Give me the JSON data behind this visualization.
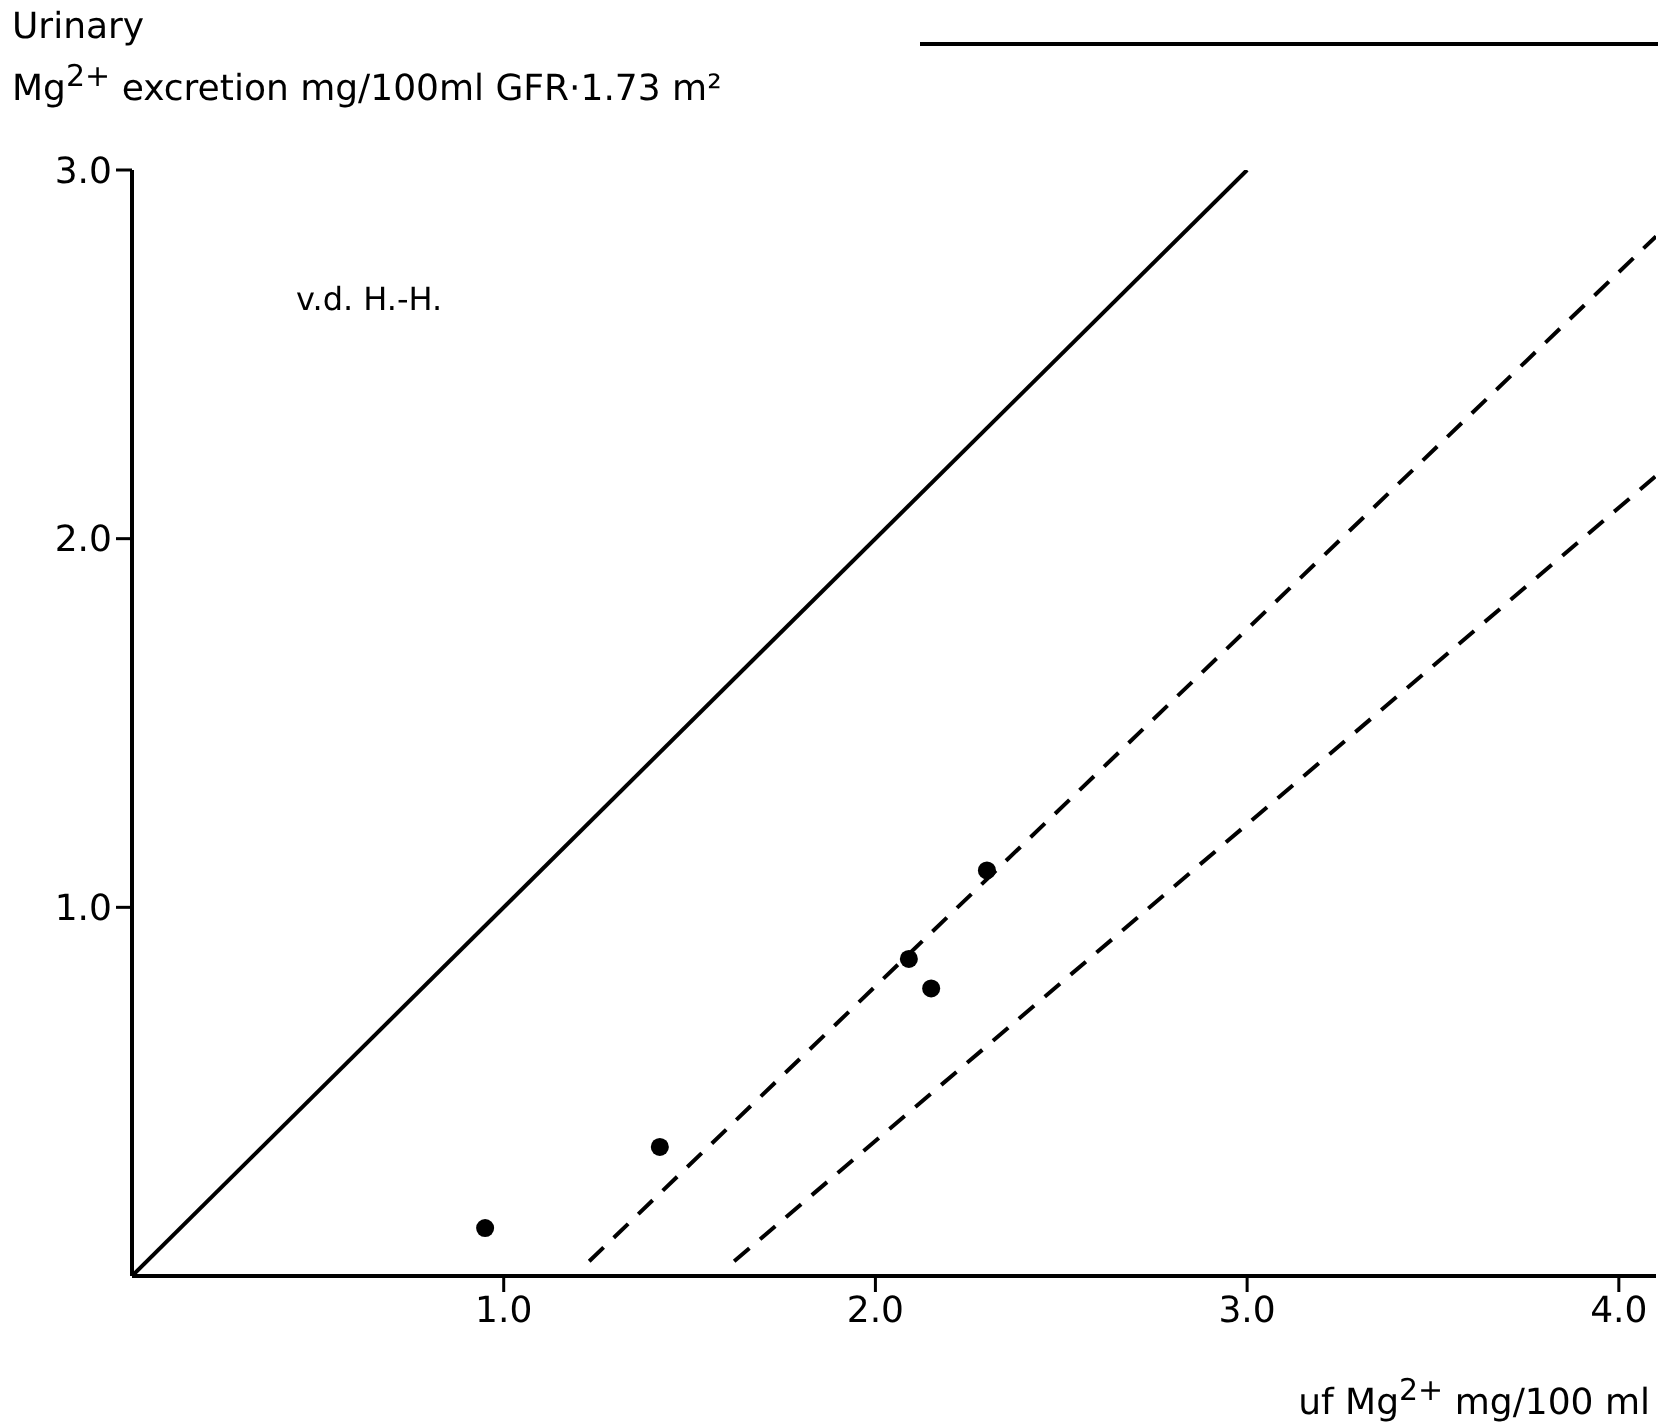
{
  "chart_data": {
    "type": "scatter",
    "ylabel": "Urinary\nMg$^{2+}$ excretion mg/100ml GFR·1.73 m²",
    "xlabel": "uf Mg$^{2+}$ mg/100 ml",
    "annotations": [
      "v.d. H.-H."
    ],
    "xlim": [
      0,
      4.1
    ],
    "ylim": [
      0,
      3.0
    ],
    "xticks": [
      {
        "value": 1,
        "label": "1.0"
      },
      {
        "value": 2,
        "label": "2.0"
      },
      {
        "value": 3,
        "label": "3.0"
      },
      {
        "value": 4,
        "label": "4.0"
      }
    ],
    "yticks": [
      {
        "value": 1,
        "label": "1.0"
      },
      {
        "value": 2,
        "label": "2.0"
      },
      {
        "value": 3,
        "label": "3.0"
      }
    ],
    "grid": false,
    "legend": false,
    "series": [
      {
        "type": "line",
        "color": "#000000",
        "line_style": "solid",
        "marker": "none",
        "x": [
          0,
          3.0
        ],
        "values": [
          0,
          3.0
        ]
      },
      {
        "type": "line",
        "color": "#000000",
        "line_style": "dashed",
        "marker": "none",
        "x": [
          1.23,
          4.1
        ],
        "values": [
          0.04,
          2.82
        ]
      },
      {
        "type": "line",
        "color": "#000000",
        "line_style": "dashed",
        "marker": "none",
        "x": [
          1.62,
          4.1
        ],
        "values": [
          0.04,
          2.17
        ]
      },
      {
        "color": "#000000",
        "marker": "circle",
        "x": [
          0.95,
          1.42,
          2.09,
          2.15,
          2.3
        ],
        "values": [
          0.13,
          0.35,
          0.86,
          0.78,
          1.1
        ]
      }
    ]
  }
}
